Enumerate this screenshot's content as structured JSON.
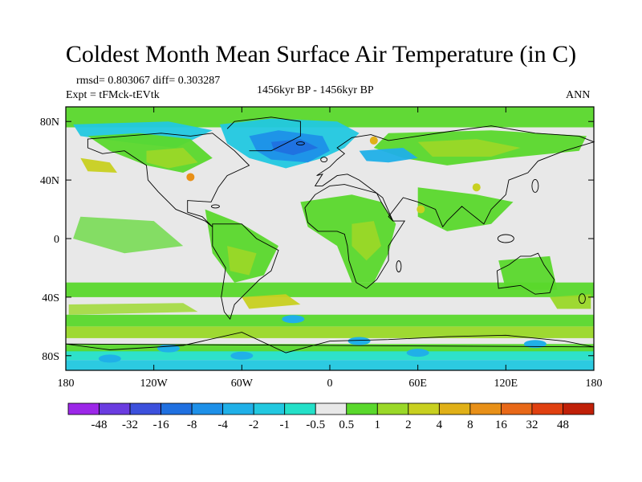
{
  "header": {
    "title": "Coldest Month Mean Surface Air Temperature (in C)",
    "stats": "rmsd= 0.803067 diff= 0.303287",
    "experiment": "Expt = tFMck-tEVtk",
    "period": "1456kyr BP - 1456kyr BP",
    "season": "ANN"
  },
  "chart_data": {
    "type": "heatmap",
    "title": "Coldest Month Mean Surface Air Temperature (in C)",
    "subtitle": "1456kyr BP - 1456kyr BP",
    "x_ticks": [
      "180",
      "120W",
      "60W",
      "0",
      "60E",
      "120E",
      "180"
    ],
    "y_ticks": [
      "80N",
      "40N",
      "0",
      "40S",
      "80S"
    ],
    "xlim": [
      -180,
      180
    ],
    "ylim": [
      -90,
      90
    ],
    "grid": false,
    "colorbar": {
      "labels": [
        "-48",
        "-32",
        "-16",
        "-8",
        "-4",
        "-2",
        "-1",
        "-0.5",
        "0.5",
        "1",
        "2",
        "4",
        "8",
        "16",
        "32",
        "48"
      ],
      "colors": [
        "#9c27e8",
        "#6a3ce0",
        "#3c50dc",
        "#2070e0",
        "#1e90e8",
        "#20b0e8",
        "#22c8e0",
        "#24e0c8",
        "#e8e8e8",
        "#5ad82c",
        "#9ad828",
        "#c8d020",
        "#e0b018",
        "#e89018",
        "#e86818",
        "#e04010",
        "#c02008"
      ]
    },
    "regions": [
      {
        "category": "1",
        "lon_range": [
          -180,
          180
        ],
        "lat_range": [
          -60,
          -52
        ],
        "description_level": "0.5 to 1"
      },
      {
        "category": "2",
        "lon_range": [
          -180,
          180
        ],
        "lat_range": [
          -68,
          -60
        ],
        "description_level": "1 to 2"
      },
      {
        "category": "-1",
        "lon_range": [
          -70,
          10
        ],
        "lat_range": [
          50,
          72
        ],
        "description_level": "-2 to -1"
      },
      {
        "category": "-0.5",
        "lon_range": [
          -180,
          180
        ],
        "lat_range": [
          -85,
          -72
        ],
        "description_level": "-1 to -0.5"
      },
      {
        "category": "1",
        "lon_range": [
          -180,
          180
        ],
        "lat_range": [
          72,
          85
        ],
        "description_level": "0.5 to 1"
      },
      {
        "category": "1",
        "lon_range": [
          -180,
          180
        ],
        "lat_range": [
          -40,
          -28
        ],
        "description_level": "0.5 to 1"
      }
    ]
  }
}
